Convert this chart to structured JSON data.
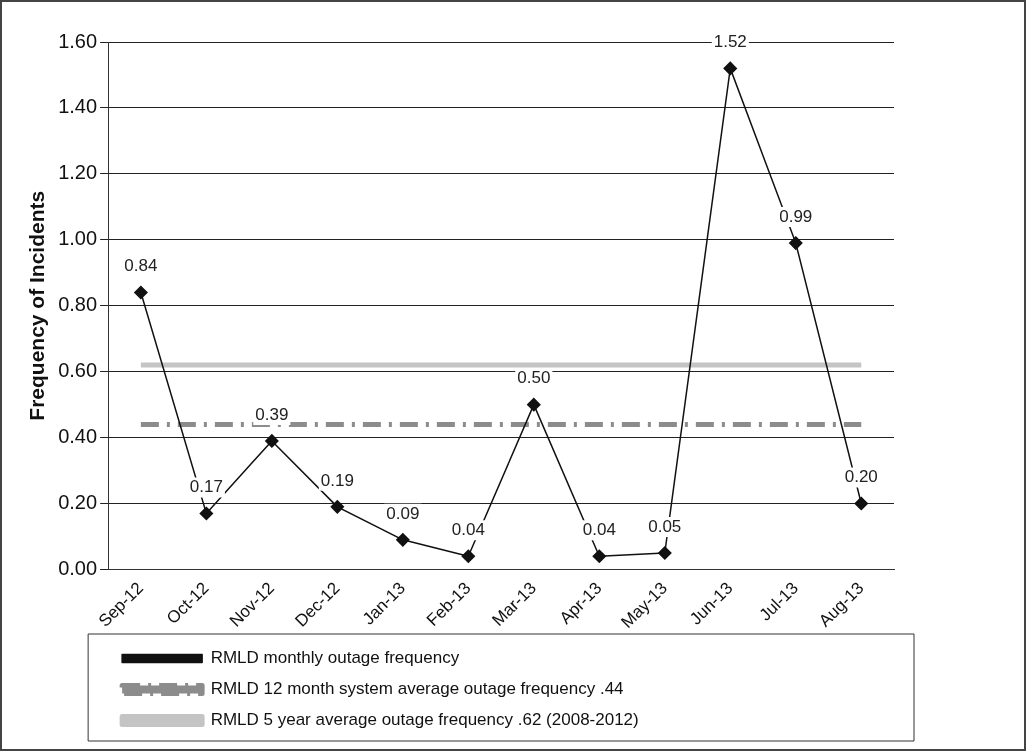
{
  "chart_data": {
    "type": "line",
    "ylabel": "Frequency of Incidents",
    "categories": [
      "Sep-12",
      "Oct-12",
      "Nov-12",
      "Dec-12",
      "Jan-13",
      "Feb-13",
      "Mar-13",
      "Apr-13",
      "May-13",
      "Jun-13",
      "Jul-13",
      "Aug-13"
    ],
    "series": [
      {
        "name": "RMLD monthly outage frequency",
        "color": "#111111",
        "marker": "diamond",
        "line_style": "solid",
        "values": [
          0.84,
          0.17,
          0.39,
          0.19,
          0.09,
          0.04,
          0.5,
          0.04,
          0.05,
          1.52,
          0.99,
          0.2
        ],
        "value_labels": [
          "0.84",
          "0.17",
          "0.39",
          "0.19",
          "0.09",
          "0.04",
          "0.50",
          "0.04",
          "0.05",
          "1.52",
          "0.99",
          "0.20"
        ]
      },
      {
        "name": "RMLD 12 month system average outage frequency .44",
        "color": "#8c8c8c",
        "marker": "none",
        "line_style": "dashed",
        "values": [
          0.44,
          0.44,
          0.44,
          0.44,
          0.44,
          0.44,
          0.44,
          0.44,
          0.44,
          0.44,
          0.44,
          0.44
        ]
      },
      {
        "name": "RMLD 5 year average outage frequency .62 (2008-2012)",
        "color": "#c4c4c4",
        "marker": "none",
        "line_style": "solid",
        "values": [
          0.62,
          0.62,
          0.62,
          0.62,
          0.62,
          0.62,
          0.62,
          0.62,
          0.62,
          0.62,
          0.62,
          0.62
        ]
      }
    ],
    "ylim": [
      0,
      1.6
    ],
    "yticks": [
      {
        "value": 0,
        "label": "0.00"
      },
      {
        "value": 0.2,
        "label": "0.20"
      },
      {
        "value": 0.4,
        "label": "0.40"
      },
      {
        "value": 0.6,
        "label": "0.60"
      },
      {
        "value": 0.8,
        "label": "0.80"
      },
      {
        "value": 1,
        "label": "1.00"
      },
      {
        "value": 1.2,
        "label": "1.20"
      },
      {
        "value": 1.4,
        "label": "1.40"
      },
      {
        "value": 1.6,
        "label": "1.60"
      }
    ],
    "grid": "y",
    "legend": "bottom"
  }
}
